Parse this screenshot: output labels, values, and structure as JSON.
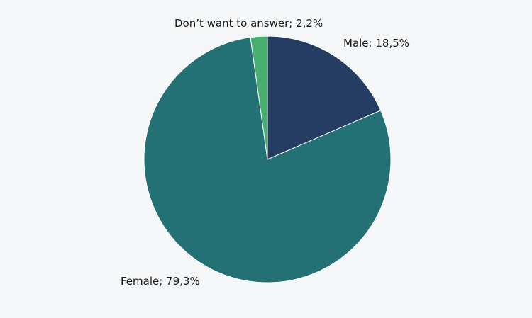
{
  "chart_data": {
    "type": "pie",
    "title": "",
    "slices": [
      {
        "label": "Male; 18,5%",
        "category": "Male",
        "value": 18.5,
        "color": "#253c63"
      },
      {
        "label": "Female; 79,3%",
        "category": "Female",
        "value": 79.3,
        "color": "#237174"
      },
      {
        "label": "Don’t want to answer; 2,2%",
        "category": "Don’t want to answer",
        "value": 2.2,
        "color": "#47b071"
      }
    ],
    "start": "12 o'clock",
    "direction": "clockwise",
    "legend": "none"
  }
}
